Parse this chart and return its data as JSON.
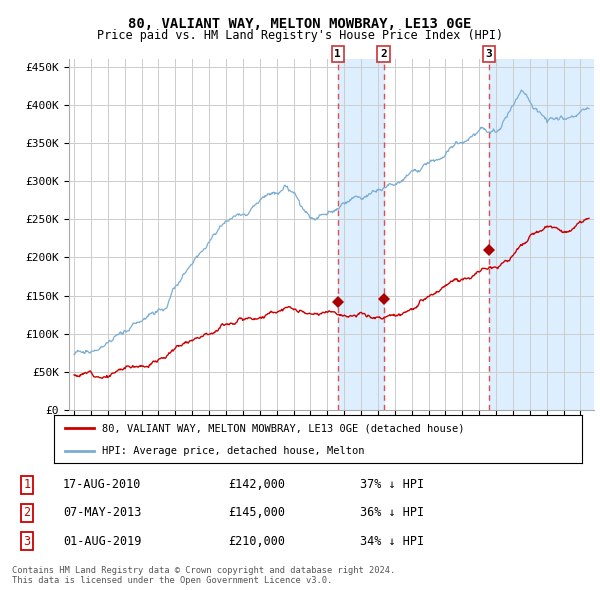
{
  "title": "80, VALIANT WAY, MELTON MOWBRAY, LE13 0GE",
  "subtitle": "Price paid vs. HM Land Registry's House Price Index (HPI)",
  "hpi_color": "#7aadd4",
  "price_color": "#cc0000",
  "marker_color": "#aa0000",
  "dashed_line_color": "#dd3333",
  "shade_color": "#ddeeff",
  "background_color": "#ffffff",
  "grid_color": "#cccccc",
  "ylim": [
    0,
    460000
  ],
  "yticks": [
    0,
    50000,
    100000,
    150000,
    200000,
    250000,
    300000,
    350000,
    400000,
    450000
  ],
  "ytick_labels": [
    "£0",
    "£50K",
    "£100K",
    "£150K",
    "£200K",
    "£250K",
    "£300K",
    "£350K",
    "£400K",
    "£450K"
  ],
  "sale_date_nums": [
    2010.625,
    2013.333,
    2019.583
  ],
  "sale_prices": [
    142000,
    145000,
    210000
  ],
  "sale_labels": [
    "1",
    "2",
    "3"
  ],
  "legend_entries": [
    {
      "label": "80, VALIANT WAY, MELTON MOWBRAY, LE13 0GE (detached house)",
      "color": "#cc0000"
    },
    {
      "label": "HPI: Average price, detached house, Melton",
      "color": "#7aadd4"
    }
  ],
  "table_data": [
    {
      "num": "1",
      "date": "17-AUG-2010",
      "price": "£142,000",
      "pct": "37% ↓ HPI"
    },
    {
      "num": "2",
      "date": "07-MAY-2013",
      "price": "£145,000",
      "pct": "36% ↓ HPI"
    },
    {
      "num": "3",
      "date": "01-AUG-2019",
      "price": "£210,000",
      "pct": "34% ↓ HPI"
    }
  ],
  "footer": "Contains HM Land Registry data © Crown copyright and database right 2024.\nThis data is licensed under the Open Government Licence v3.0.",
  "xlim_left": 1994.7,
  "xlim_right": 2025.8,
  "n_points": 740
}
